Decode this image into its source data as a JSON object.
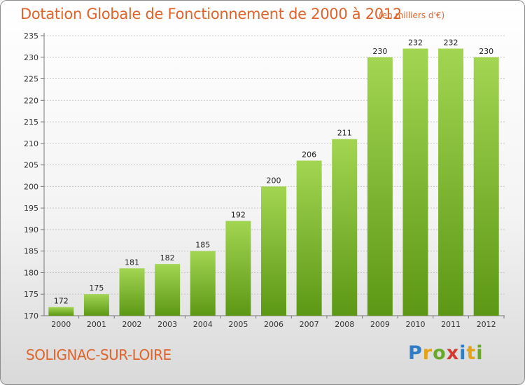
{
  "header": {
    "title": "Dotation Globale de Fonctionnement de 2000 à 2012",
    "unit": "(en milliers d'€)"
  },
  "footer": {
    "commune": "SOLIGNAC-SUR-LOIRE",
    "logo": "Proxiti"
  },
  "chart_data": {
    "type": "bar",
    "title": "Dotation Globale de Fonctionnement de 2000 à 2012",
    "subtitle": "(en milliers d'€)",
    "categories": [
      "2000",
      "2001",
      "2002",
      "2003",
      "2004",
      "2005",
      "2006",
      "2007",
      "2008",
      "2009",
      "2010",
      "2011",
      "2012"
    ],
    "values": [
      172,
      175,
      181,
      182,
      185,
      192,
      200,
      206,
      211,
      230,
      232,
      232,
      230
    ],
    "ylim": [
      170,
      235
    ],
    "yticks": [
      170,
      175,
      180,
      185,
      190,
      195,
      200,
      205,
      210,
      215,
      220,
      225,
      230,
      235
    ],
    "grid": true,
    "legend": "none",
    "colors": {
      "bar_top": "#9fd24e",
      "bar_bottom": "#5e9a16",
      "grid": "#c8c8c8",
      "text_accent": "#e0642a"
    }
  }
}
